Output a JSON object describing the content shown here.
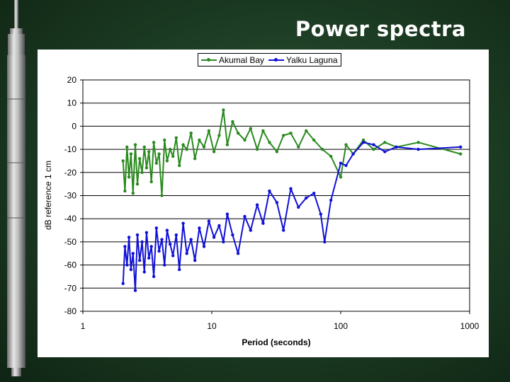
{
  "slide": {
    "title": "Power spectra"
  },
  "colors": {
    "akumal": "#2a8a1f",
    "yalku": "#1010d8",
    "grid": "#000000"
  },
  "icons": {
    "sensor": "pressure-sensor-probe-icon"
  },
  "chart_data": {
    "type": "line",
    "xlabel": "Period (seconds)",
    "ylabel": "dB reference 1 cm",
    "xscale": "log",
    "xlim": [
      1,
      1000
    ],
    "ylim": [
      -80,
      20
    ],
    "yticks": [
      20,
      10,
      0,
      -10,
      -20,
      -30,
      -40,
      -50,
      -60,
      -70,
      -80
    ],
    "xticks": [
      1,
      10,
      100,
      1000
    ],
    "ytick_labels": [
      "20",
      "10",
      "0",
      "-10",
      "-20",
      "-30",
      "-40",
      "-50",
      "-60",
      "-70",
      "-80"
    ],
    "xtick_labels": [
      "1",
      "10",
      "100",
      "1000"
    ],
    "grid": "horizontal",
    "legend_position": "top-center",
    "series": [
      {
        "name": "Akumal Bay",
        "color": "#2a8a1f",
        "x": [
          2.05,
          2.12,
          2.2,
          2.28,
          2.36,
          2.45,
          2.55,
          2.65,
          2.76,
          2.88,
          3.0,
          3.12,
          3.25,
          3.4,
          3.55,
          3.72,
          3.9,
          4.1,
          4.3,
          4.5,
          4.75,
          5.0,
          5.3,
          5.6,
          6.0,
          6.4,
          6.9,
          7.4,
          8.0,
          8.7,
          9.5,
          10.4,
          11.4,
          12.3,
          13.2,
          14.5,
          16,
          18,
          20,
          22.5,
          25,
          28,
          32,
          36,
          41,
          47,
          54,
          62,
          72,
          84,
          100,
          110,
          125,
          150,
          180,
          220,
          270,
          400,
          850
        ],
        "y": [
          -15,
          -28,
          -9,
          -22,
          -12,
          -29,
          -8,
          -25,
          -14,
          -20,
          -9,
          -18,
          -11,
          -24,
          -7,
          -16,
          -12,
          -30,
          -6,
          -15,
          -10,
          -13,
          -5,
          -17,
          -8,
          -10,
          -3,
          -14,
          -6,
          -9,
          -2,
          -11,
          -4,
          7,
          -8,
          2,
          -3,
          -6,
          -1,
          -10,
          -2,
          -7,
          -11,
          -4,
          -3,
          -9,
          -2,
          -6,
          -10,
          -13,
          -22,
          -8,
          -12,
          -6,
          -10,
          -7,
          -9,
          -7,
          -12
        ]
      },
      {
        "name": "Yalku Laguna",
        "color": "#1010d8",
        "x": [
          2.05,
          2.12,
          2.2,
          2.28,
          2.36,
          2.45,
          2.55,
          2.65,
          2.76,
          2.88,
          3.0,
          3.12,
          3.25,
          3.4,
          3.55,
          3.72,
          3.9,
          4.1,
          4.3,
          4.5,
          4.75,
          5.0,
          5.3,
          5.6,
          6.0,
          6.4,
          6.9,
          7.4,
          8.0,
          8.7,
          9.5,
          10.4,
          11.4,
          12.3,
          13.2,
          14.5,
          16,
          18,
          20,
          22.5,
          25,
          28,
          32,
          36,
          41,
          47,
          54,
          62,
          70,
          75,
          84,
          100,
          110,
          125,
          150,
          180,
          220,
          270,
          400,
          850
        ],
        "y": [
          -68,
          -52,
          -60,
          -48,
          -62,
          -55,
          -71,
          -47,
          -58,
          -50,
          -63,
          -46,
          -57,
          -52,
          -65,
          -44,
          -54,
          -49,
          -60,
          -45,
          -51,
          -56,
          -47,
          -62,
          -42,
          -55,
          -49,
          -58,
          -44,
          -52,
          -41,
          -48,
          -43,
          -50,
          -38,
          -47,
          -55,
          -39,
          -45,
          -34,
          -42,
          -28,
          -33,
          -45,
          -27,
          -35,
          -31,
          -29,
          -38,
          -50,
          -32,
          -16,
          -17,
          -12,
          -7,
          -8,
          -11,
          -9,
          -10,
          -9
        ]
      }
    ]
  }
}
